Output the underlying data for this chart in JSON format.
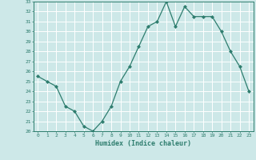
{
  "x": [
    0,
    1,
    2,
    3,
    4,
    5,
    6,
    7,
    8,
    9,
    10,
    11,
    12,
    13,
    14,
    15,
    16,
    17,
    18,
    19,
    20,
    21,
    22,
    23
  ],
  "y": [
    25.5,
    25.0,
    24.5,
    22.5,
    22.0,
    20.5,
    20.0,
    21.0,
    22.5,
    25.0,
    26.5,
    28.5,
    30.5,
    31.0,
    33.0,
    30.5,
    32.5,
    31.5,
    31.5,
    31.5,
    30.0,
    28.0,
    26.5,
    24.0
  ],
  "xlabel": "Humidex (Indice chaleur)",
  "xlim": [
    -0.5,
    23.5
  ],
  "ylim": [
    20,
    33
  ],
  "yticks": [
    20,
    21,
    22,
    23,
    24,
    25,
    26,
    27,
    28,
    29,
    30,
    31,
    32,
    33
  ],
  "xticks": [
    0,
    1,
    2,
    3,
    4,
    5,
    6,
    7,
    8,
    9,
    10,
    11,
    12,
    13,
    14,
    15,
    16,
    17,
    18,
    19,
    20,
    21,
    22,
    23
  ],
  "line_color": "#2e7d6e",
  "marker_color": "#2e7d6e",
  "bg_color": "#cde8e8",
  "grid_color": "#ffffff",
  "label_color": "#2e7d6e",
  "tick_color": "#2e7d6e",
  "spine_color": "#2e7d6e"
}
